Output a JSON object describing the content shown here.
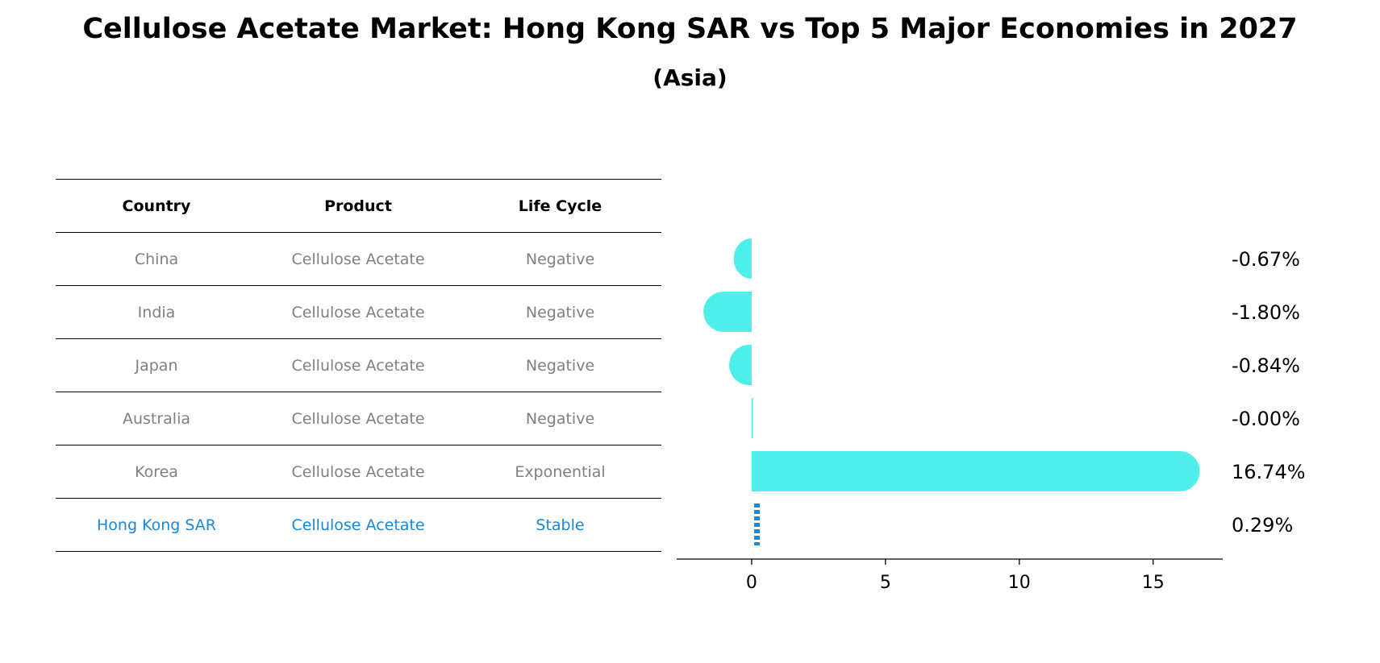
{
  "title": "Cellulose Acetate Market: Hong Kong SAR vs Top 5 Major Economies in 2027",
  "subtitle": "(Asia)",
  "table": {
    "headers": [
      "Country",
      "Product",
      "Life Cycle"
    ],
    "rows": [
      {
        "country": "China",
        "product": "Cellulose Acetate",
        "life_cycle": "Negative"
      },
      {
        "country": "India",
        "product": "Cellulose Acetate",
        "life_cycle": "Negative"
      },
      {
        "country": "Japan",
        "product": "Cellulose Acetate",
        "life_cycle": "Negative"
      },
      {
        "country": "Australia",
        "product": "Cellulose Acetate",
        "life_cycle": "Negative"
      },
      {
        "country": "Korea",
        "product": "Cellulose Acetate",
        "life_cycle": "Exponential"
      },
      {
        "country": "Hong Kong SAR",
        "product": "Cellulose Acetate",
        "life_cycle": "Stable"
      }
    ]
  },
  "colors": {
    "bar": "#4eeeea",
    "highlight": "#1a87d8",
    "muted_text": "#808080"
  },
  "chart_data": {
    "type": "bar",
    "orientation": "horizontal",
    "categories": [
      "China",
      "India",
      "Japan",
      "Australia",
      "Korea",
      "Hong Kong SAR"
    ],
    "values": [
      -0.67,
      -1.8,
      -0.84,
      -0.0,
      16.74,
      0.29
    ],
    "value_labels": [
      "-0.67%",
      "-1.80%",
      "-0.84%",
      "-0.00%",
      "16.74%",
      "0.29%"
    ],
    "highlight_category": "Hong Kong SAR",
    "xlim": [
      -2.8,
      17.6
    ],
    "xticks": [
      0,
      5,
      10,
      15
    ],
    "xlabel": "",
    "ylabel": "",
    "grid": false,
    "legend": "none"
  }
}
